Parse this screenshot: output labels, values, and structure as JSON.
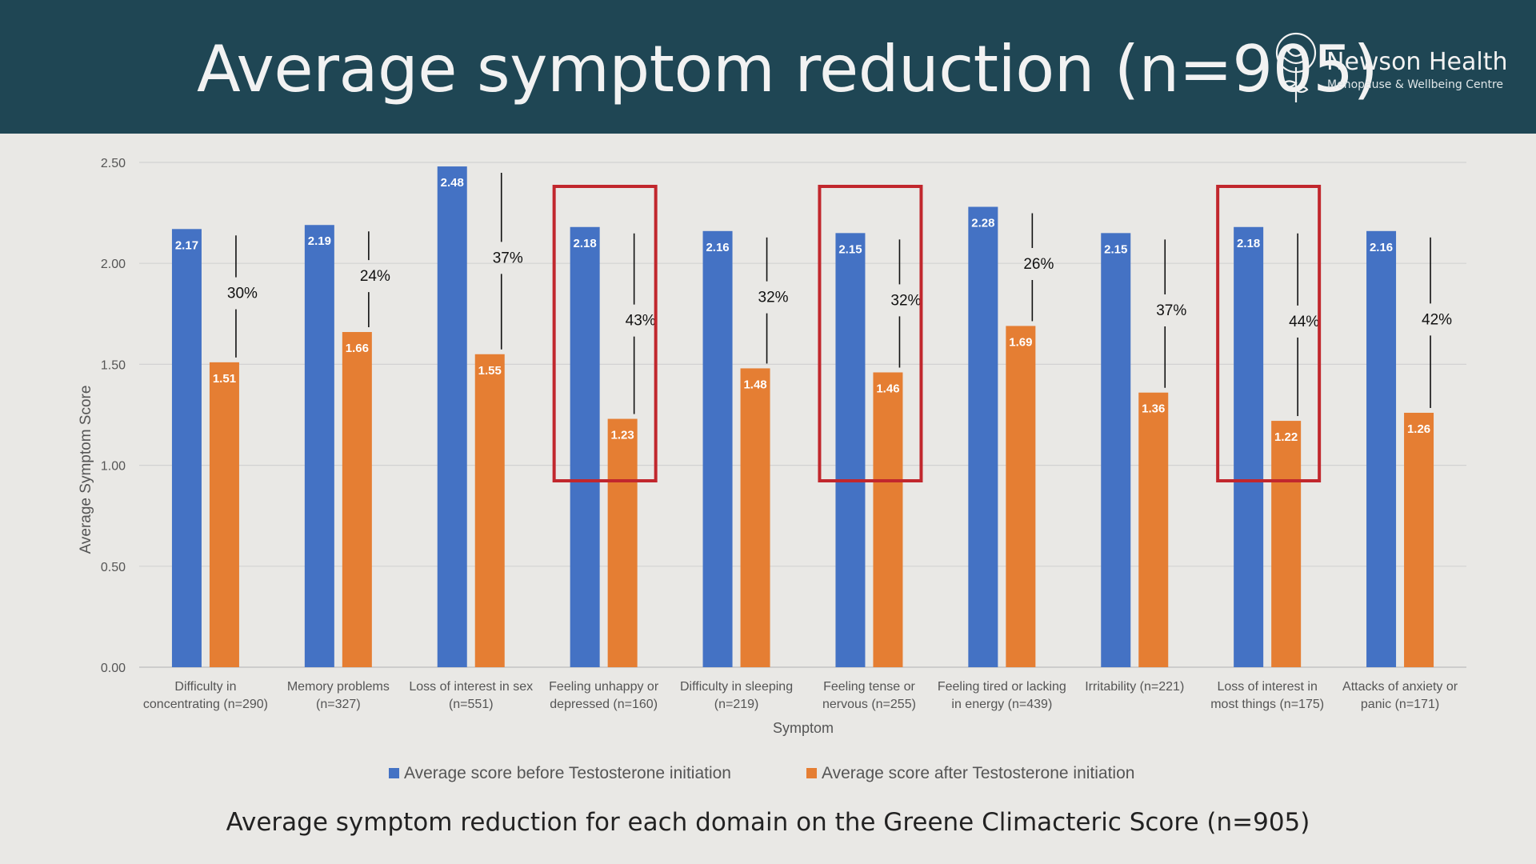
{
  "header": {
    "title": "Average symptom reduction (n=905)",
    "logo": {
      "name": "Newson Health",
      "tagline": "Menopause & Wellbeing Centre",
      "icon": "rose-icon"
    }
  },
  "caption": "Average symptom reduction for each domain on the Greene Climacteric Score (n=905)",
  "colors": {
    "before": "#4472c4",
    "after": "#e57e33",
    "highlight": "#c1272d",
    "header_bg": "#1f4654"
  },
  "chart_data": {
    "type": "bar",
    "title": "",
    "xlabel": "Symptom",
    "ylabel": "Average Symptom Score",
    "ylim": [
      0,
      2.5
    ],
    "yticks": [
      "0.00",
      "0.50",
      "1.00",
      "1.50",
      "2.00",
      "2.50"
    ],
    "grid": true,
    "legend_position": "bottom",
    "categories": [
      [
        "Difficulty in",
        "concentrating (n=290)"
      ],
      [
        "Memory problems",
        "(n=327)"
      ],
      [
        "Loss of interest in sex",
        "(n=551)"
      ],
      [
        "Feeling unhappy or",
        "depressed (n=160)"
      ],
      [
        "Difficulty in sleeping",
        "(n=219)"
      ],
      [
        "Feeling tense or",
        "nervous (n=255)"
      ],
      [
        "Feeling tired or lacking",
        "in energy (n=439)"
      ],
      [
        "Irritability (n=221)",
        ""
      ],
      [
        "Loss of interest in",
        "most things (n=175)"
      ],
      [
        "Attacks of anxiety or",
        "panic (n=171)"
      ]
    ],
    "series": [
      {
        "name": "Average score before Testosterone initiation",
        "values": [
          2.17,
          2.19,
          2.48,
          2.18,
          2.16,
          2.15,
          2.28,
          2.15,
          2.18,
          2.16
        ],
        "labels": [
          "2.17",
          "2.19",
          "2.48",
          "2.18",
          "2.16",
          "2.15",
          "2.28",
          "2.15",
          "2.18",
          "2.16"
        ]
      },
      {
        "name": "Average score after Testosterone initiation",
        "values": [
          1.51,
          1.66,
          1.55,
          1.23,
          1.48,
          1.46,
          1.69,
          1.36,
          1.22,
          1.26
        ],
        "labels": [
          "1.51",
          "1.66",
          "1.55",
          "1.23",
          "1.48",
          "1.46",
          "1.69",
          "1.36",
          "1.22",
          "1.26"
        ]
      }
    ],
    "reductions": [
      "30%",
      "24%",
      "37%",
      "43%",
      "32%",
      "32%",
      "26%",
      "37%",
      "44%",
      "42%"
    ],
    "highlighted_categories": [
      3,
      5,
      8
    ]
  }
}
